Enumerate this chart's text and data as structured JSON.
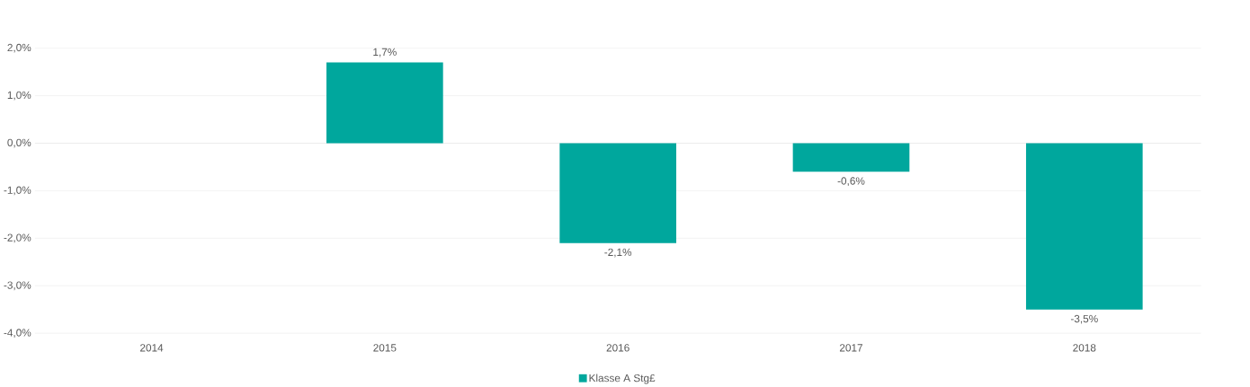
{
  "chart_data": {
    "type": "bar",
    "categories": [
      "2014",
      "2015",
      "2016",
      "2017",
      "2018"
    ],
    "series": [
      {
        "name": "Klasse A Stg£",
        "color": "#00a79d",
        "values": [
          null,
          1.7,
          -2.1,
          -0.6,
          -3.5
        ],
        "value_labels": [
          null,
          "1,7%",
          "-2,1%",
          "-0,6%",
          "-3,5%"
        ]
      }
    ],
    "ylim": [
      -4,
      2
    ],
    "yticks": [
      {
        "value": -4,
        "label": "-4,0%"
      },
      {
        "value": -3,
        "label": "-3,0%"
      },
      {
        "value": -2,
        "label": "-2,0%"
      },
      {
        "value": -1,
        "label": "-1,0%"
      },
      {
        "value": 0,
        "label": "0,0%"
      },
      {
        "value": 1,
        "label": "1,0%"
      },
      {
        "value": 2,
        "label": "2,0%"
      }
    ],
    "grid": "y",
    "legend": "bottom"
  }
}
